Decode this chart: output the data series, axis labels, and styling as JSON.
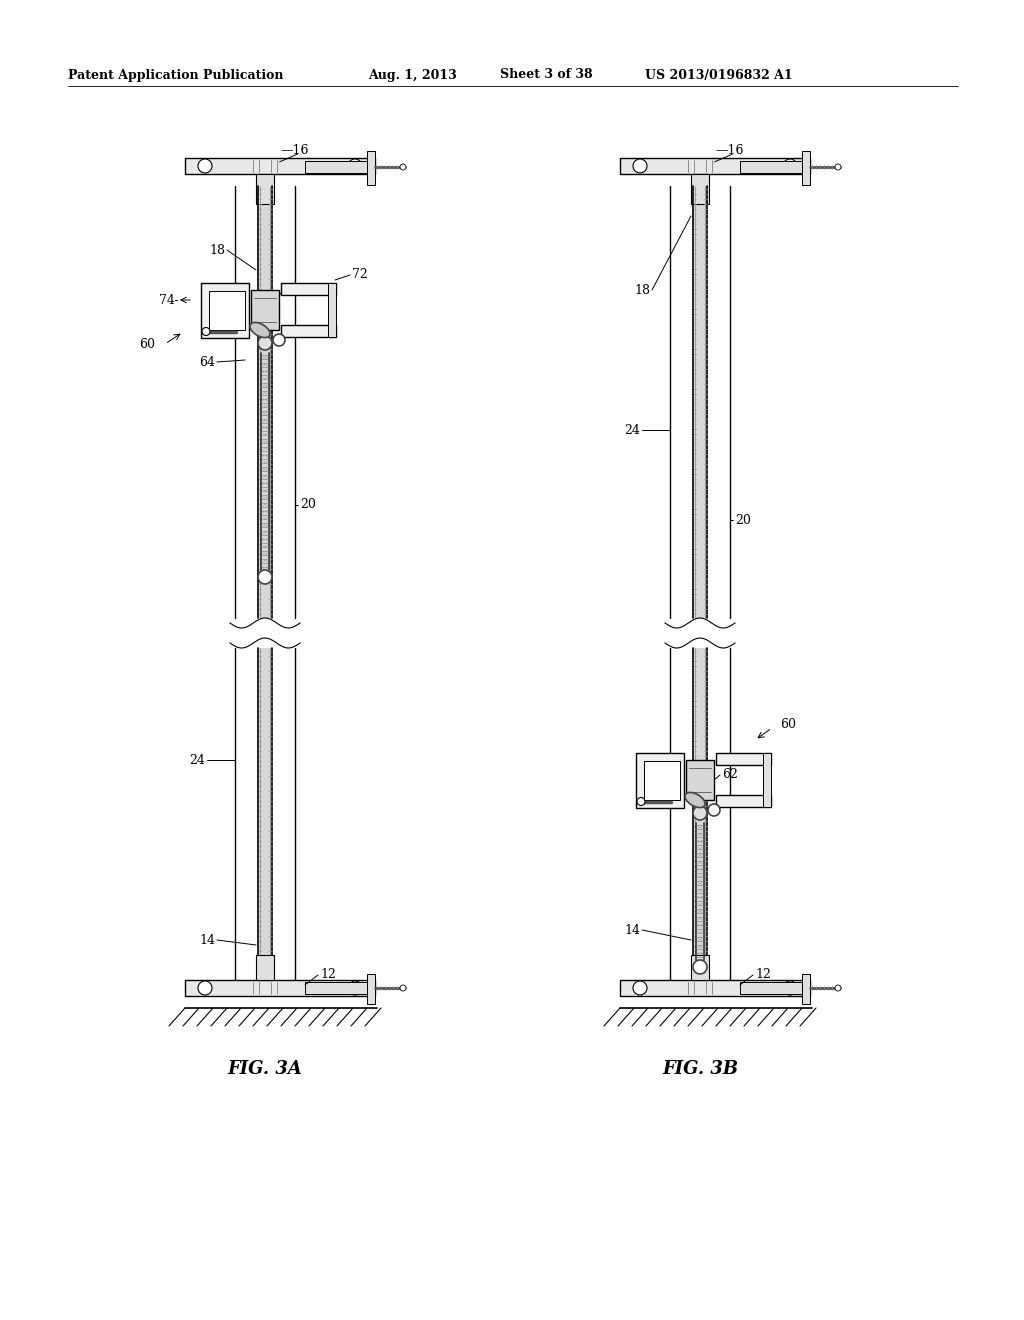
{
  "title_line1": "Patent Application Publication",
  "title_line2": "Aug. 1, 2013",
  "title_line3": "Sheet 3 of 38",
  "title_line4": "US 2013/0196832 A1",
  "fig3a_label": "FIG. 3A",
  "fig3b_label": "FIG. 3B",
  "background_color": "#ffffff",
  "line_color": "#000000"
}
